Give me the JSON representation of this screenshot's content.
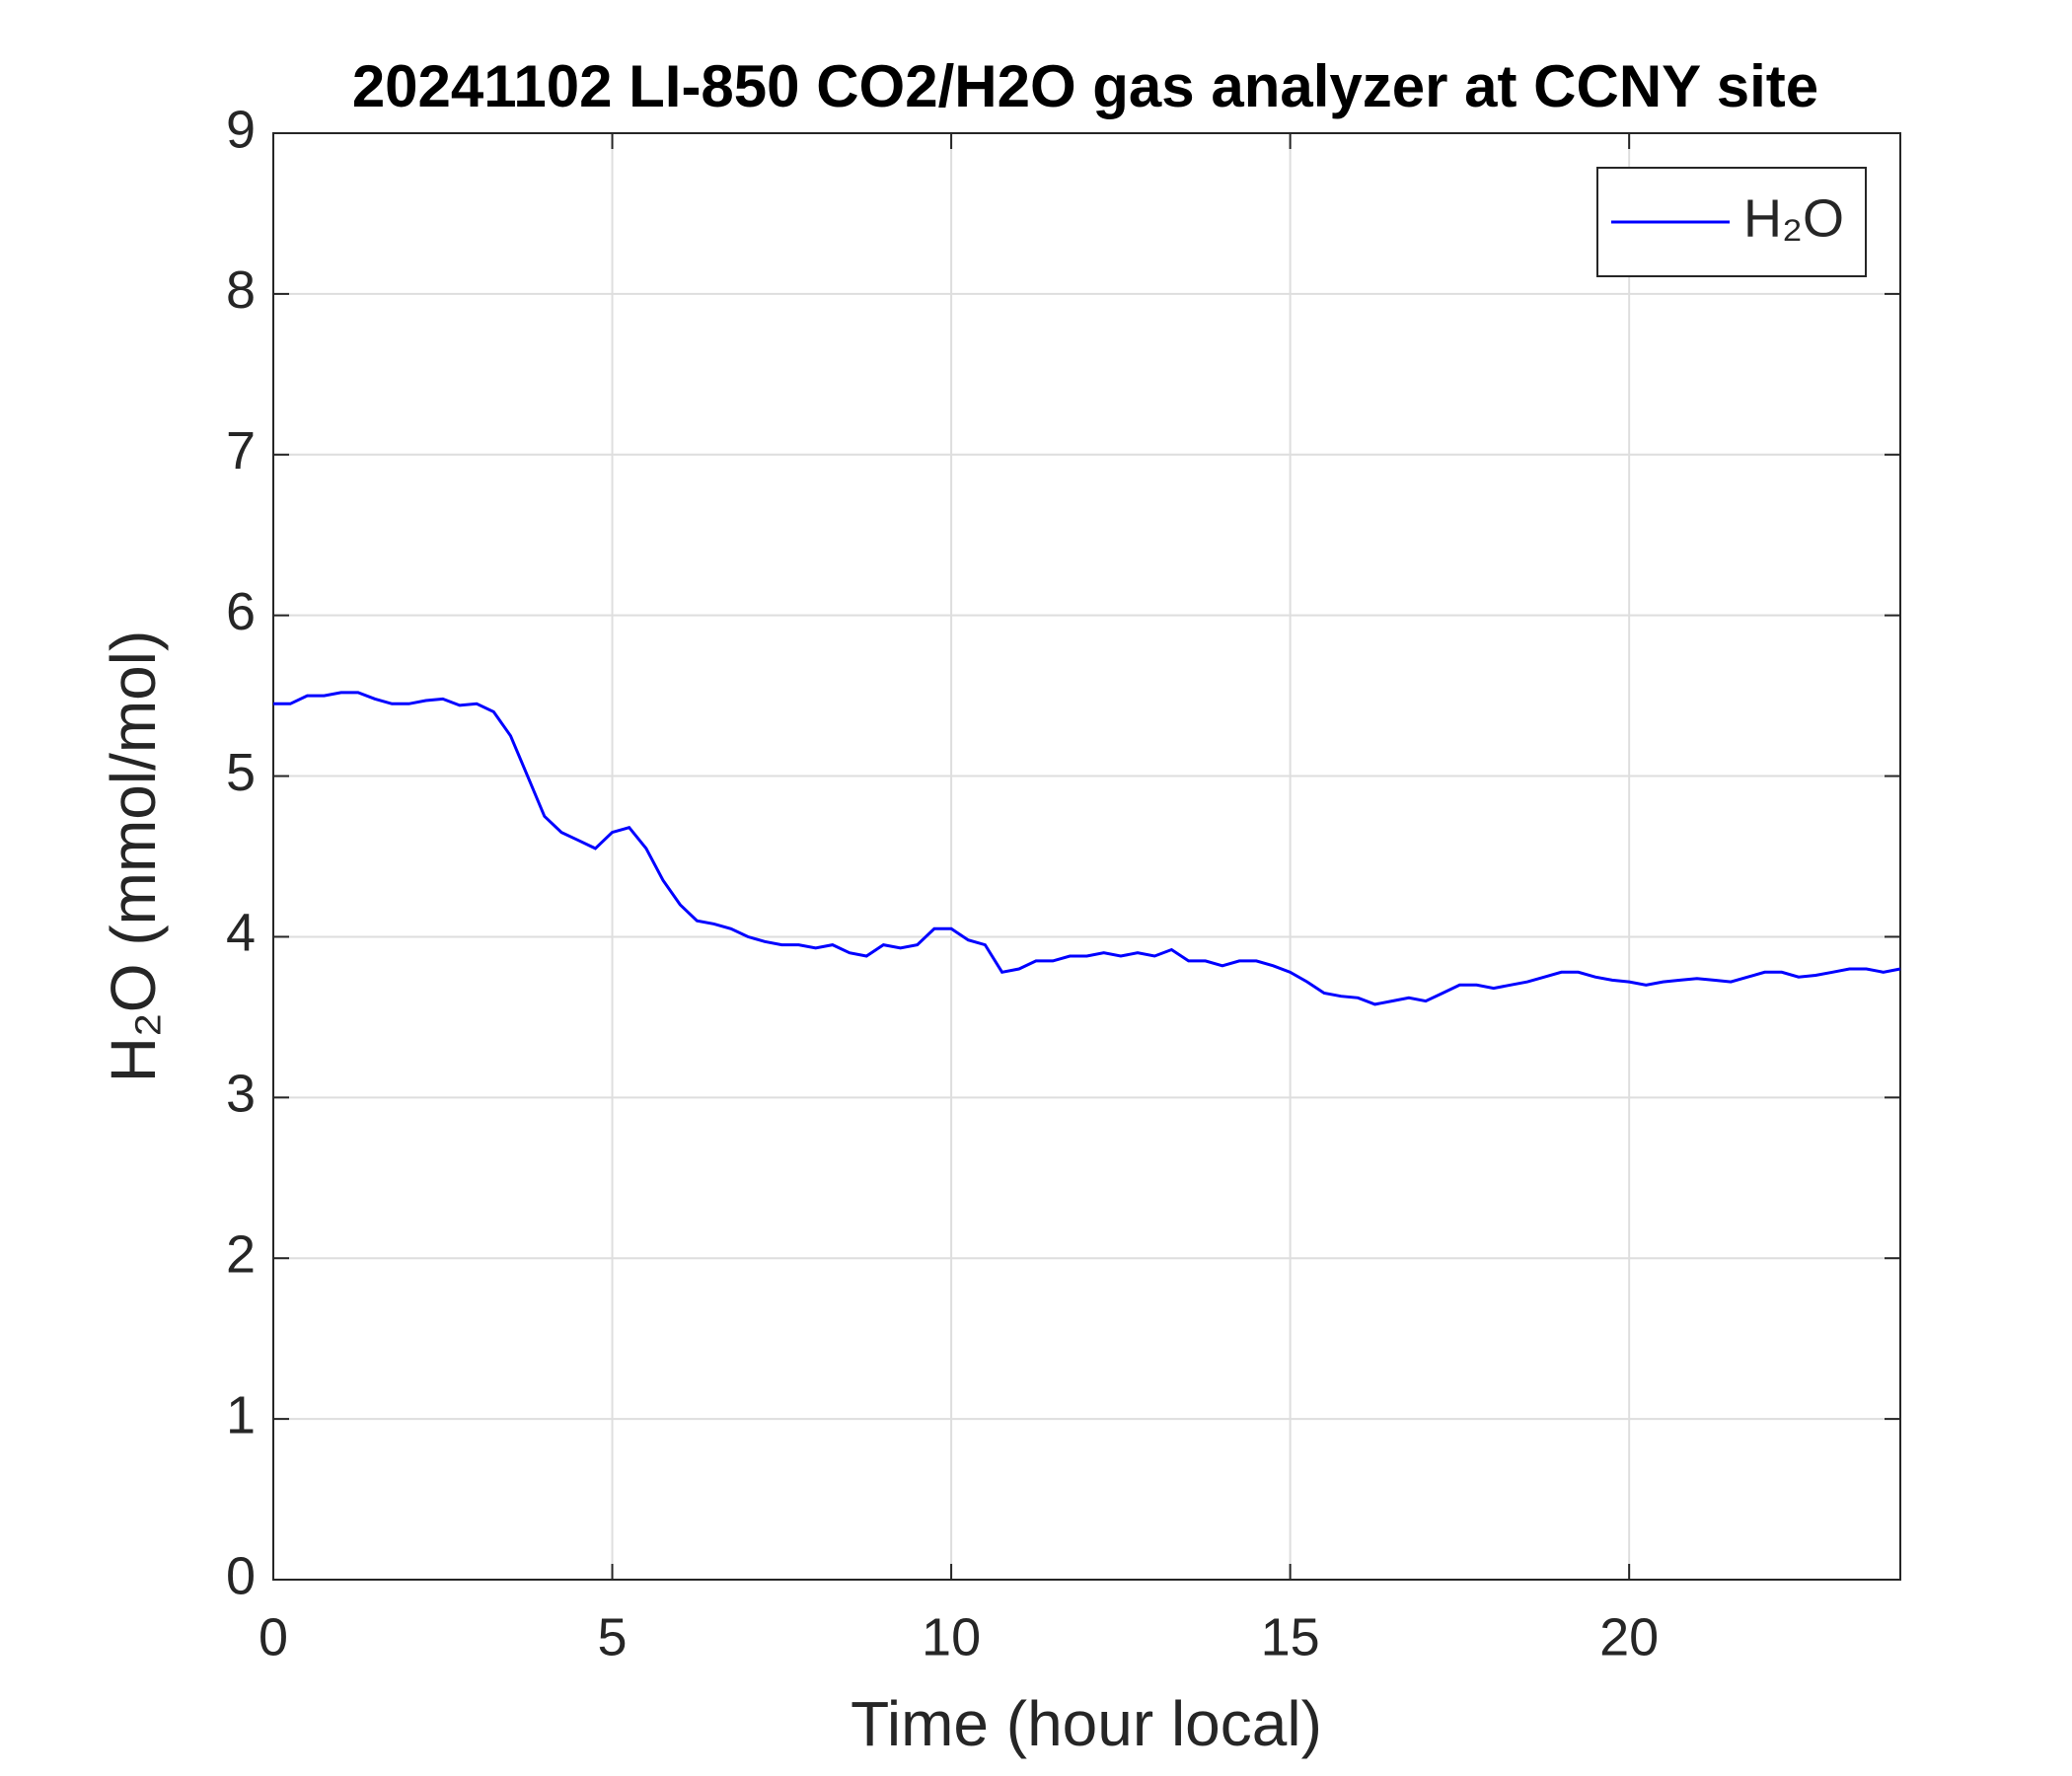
{
  "chart_data": {
    "type": "line",
    "title": "20241102 LI-850 CO2/H2O gas analyzer at CCNY site",
    "x_label": "Time (hour local)",
    "y_label": "H₂O (mmol/mol)",
    "x": [
      0,
      0.25,
      0.5,
      0.75,
      1,
      1.25,
      1.5,
      1.75,
      2,
      2.25,
      2.5,
      2.75,
      3,
      3.25,
      3.5,
      3.75,
      4,
      4.25,
      4.5,
      4.75,
      5,
      5.25,
      5.5,
      5.75,
      6,
      6.25,
      6.5,
      6.75,
      7,
      7.25,
      7.5,
      7.75,
      8,
      8.25,
      8.5,
      8.75,
      9,
      9.25,
      9.5,
      9.75,
      10,
      10.25,
      10.5,
      10.75,
      11,
      11.25,
      11.5,
      11.75,
      12,
      12.25,
      12.5,
      12.75,
      13,
      13.25,
      13.5,
      13.75,
      14,
      14.25,
      14.5,
      14.75,
      15,
      15.25,
      15.5,
      15.75,
      16,
      16.25,
      16.5,
      16.75,
      17,
      17.25,
      17.5,
      17.75,
      18,
      18.25,
      18.5,
      18.75,
      19,
      19.25,
      19.5,
      19.75,
      20,
      20.25,
      20.5,
      20.75,
      21,
      21.25,
      21.5,
      21.75,
      22,
      22.25,
      22.5,
      22.75,
      23,
      23.25,
      23.5,
      23.75,
      24
    ],
    "series": [
      {
        "name": "H₂O",
        "color": "#0000ff",
        "values": [
          5.45,
          5.45,
          5.5,
          5.5,
          5.52,
          5.52,
          5.48,
          5.45,
          5.45,
          5.47,
          5.48,
          5.44,
          5.45,
          5.4,
          5.25,
          5.0,
          4.75,
          4.65,
          4.6,
          4.55,
          4.65,
          4.68,
          4.55,
          4.35,
          4.2,
          4.1,
          4.08,
          4.05,
          4.0,
          3.97,
          3.95,
          3.95,
          3.93,
          3.95,
          3.9,
          3.88,
          3.95,
          3.93,
          3.95,
          4.05,
          4.05,
          3.98,
          3.95,
          3.78,
          3.8,
          3.85,
          3.85,
          3.88,
          3.88,
          3.9,
          3.88,
          3.9,
          3.88,
          3.92,
          3.85,
          3.85,
          3.82,
          3.85,
          3.85,
          3.82,
          3.78,
          3.72,
          3.65,
          3.63,
          3.62,
          3.58,
          3.6,
          3.62,
          3.6,
          3.65,
          3.7,
          3.7,
          3.68,
          3.7,
          3.72,
          3.75,
          3.78,
          3.78,
          3.75,
          3.73,
          3.72,
          3.7,
          3.72,
          3.73,
          3.74,
          3.73,
          3.72,
          3.75,
          3.78,
          3.78,
          3.75,
          3.76,
          3.78,
          3.8,
          3.8,
          3.78,
          3.8
        ]
      }
    ],
    "xlim": [
      0,
      24
    ],
    "xticks": [
      0,
      5,
      10,
      15,
      20
    ],
    "ylim": [
      0,
      9
    ],
    "yticks": [
      0,
      1,
      2,
      3,
      4,
      5,
      6,
      7,
      8,
      9
    ],
    "grid": true,
    "legend": "top-right"
  }
}
